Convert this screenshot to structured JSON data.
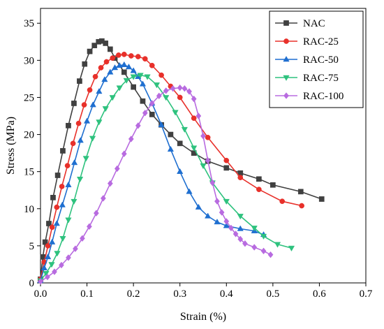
{
  "chart_data": {
    "type": "line",
    "title": "",
    "xlabel": "Strain (%)",
    "ylabel": "Stress (MPa)",
    "xlim": [
      0.0,
      0.7
    ],
    "ylim": [
      0,
      37
    ],
    "xticks": [
      "0.0",
      "0.1",
      "0.2",
      "0.3",
      "0.4",
      "0.5",
      "0.6",
      "0.7"
    ],
    "yticks": [
      "0",
      "5",
      "10",
      "15",
      "20",
      "25",
      "30",
      "35"
    ],
    "grid": false,
    "legend_position": "top-right",
    "series": [
      {
        "name": "NAC",
        "color": "#404040",
        "marker": "square",
        "x": [
          0.0,
          0.005,
          0.01,
          0.018,
          0.027,
          0.037,
          0.048,
          0.06,
          0.072,
          0.084,
          0.095,
          0.106,
          0.116,
          0.125,
          0.132,
          0.14,
          0.15,
          0.16,
          0.18,
          0.2,
          0.22,
          0.24,
          0.26,
          0.28,
          0.3,
          0.33,
          0.36,
          0.4,
          0.43,
          0.47,
          0.5,
          0.56,
          0.605
        ],
        "y": [
          0.5,
          3.5,
          5.5,
          8.0,
          11.5,
          14.5,
          17.8,
          21.2,
          24.2,
          27.2,
          29.5,
          31.2,
          32.0,
          32.5,
          32.6,
          32.3,
          31.5,
          30.3,
          28.4,
          26.4,
          24.5,
          22.7,
          21.3,
          20.0,
          18.8,
          17.5,
          16.4,
          15.5,
          14.8,
          14.0,
          13.2,
          12.3,
          11.3
        ]
      },
      {
        "name": "RAC-25",
        "color": "#e8302a",
        "marker": "circle",
        "x": [
          0.0,
          0.008,
          0.016,
          0.025,
          0.035,
          0.046,
          0.058,
          0.07,
          0.082,
          0.094,
          0.106,
          0.118,
          0.13,
          0.142,
          0.155,
          0.168,
          0.18,
          0.195,
          0.21,
          0.225,
          0.24,
          0.26,
          0.28,
          0.3,
          0.33,
          0.36,
          0.4,
          0.43,
          0.47,
          0.52,
          0.562
        ],
        "y": [
          0.5,
          2.8,
          5.0,
          7.5,
          10.2,
          13.0,
          15.8,
          18.8,
          21.5,
          24.0,
          26.0,
          27.8,
          29.0,
          29.8,
          30.3,
          30.7,
          30.8,
          30.6,
          30.5,
          30.2,
          29.3,
          28.0,
          26.5,
          25.0,
          22.2,
          19.6,
          16.5,
          14.2,
          12.6,
          11.0,
          10.4
        ]
      },
      {
        "name": "RAC-50",
        "color": "#1f6fd0",
        "marker": "triangle-up",
        "x": [
          0.0,
          0.008,
          0.016,
          0.025,
          0.035,
          0.047,
          0.06,
          0.073,
          0.086,
          0.1,
          0.113,
          0.126,
          0.138,
          0.15,
          0.16,
          0.17,
          0.18,
          0.19,
          0.2,
          0.21,
          0.22,
          0.24,
          0.26,
          0.28,
          0.3,
          0.32,
          0.34,
          0.36,
          0.38,
          0.4,
          0.43,
          0.46,
          0.48
        ],
        "y": [
          0.3,
          2.0,
          3.5,
          5.5,
          8.0,
          10.5,
          13.2,
          16.2,
          19.2,
          21.8,
          24.0,
          25.8,
          27.4,
          28.4,
          29.0,
          29.3,
          29.4,
          29.1,
          28.6,
          27.8,
          26.8,
          24.2,
          21.3,
          18.0,
          15.0,
          12.3,
          10.2,
          9.0,
          8.2,
          7.7,
          7.3,
          7.0,
          6.5
        ]
      },
      {
        "name": "RAC-75",
        "color": "#2ec27e",
        "marker": "triangle-down",
        "x": [
          0.0,
          0.012,
          0.024,
          0.036,
          0.048,
          0.06,
          0.072,
          0.085,
          0.098,
          0.112,
          0.126,
          0.14,
          0.155,
          0.17,
          0.185,
          0.2,
          0.215,
          0.23,
          0.25,
          0.27,
          0.29,
          0.31,
          0.33,
          0.35,
          0.37,
          0.4,
          0.43,
          0.46,
          0.48,
          0.51,
          0.54
        ],
        "y": [
          0.3,
          1.3,
          2.5,
          4.0,
          6.0,
          8.5,
          11.0,
          14.0,
          16.8,
          19.5,
          21.7,
          23.5,
          25.0,
          26.3,
          27.3,
          27.8,
          28.0,
          27.8,
          26.7,
          25.0,
          23.0,
          20.7,
          18.2,
          15.8,
          13.5,
          11.0,
          9.0,
          7.4,
          6.3,
          5.2,
          4.7
        ]
      },
      {
        "name": "RAC-100",
        "color": "#b86be0",
        "marker": "diamond",
        "x": [
          0.0,
          0.015,
          0.03,
          0.045,
          0.06,
          0.075,
          0.09,
          0.105,
          0.12,
          0.135,
          0.15,
          0.165,
          0.18,
          0.195,
          0.21,
          0.225,
          0.24,
          0.255,
          0.27,
          0.285,
          0.3,
          0.31,
          0.32,
          0.33,
          0.34,
          0.35,
          0.36,
          0.37,
          0.38,
          0.39,
          0.4,
          0.41,
          0.42,
          0.43,
          0.44,
          0.46,
          0.48,
          0.495
        ],
        "y": [
          0.2,
          0.8,
          1.5,
          2.4,
          3.4,
          4.6,
          6.0,
          7.6,
          9.4,
          11.4,
          13.4,
          15.4,
          17.4,
          19.4,
          21.2,
          22.9,
          24.2,
          25.2,
          25.9,
          26.2,
          26.3,
          26.2,
          25.8,
          24.8,
          22.5,
          19.8,
          16.5,
          13.5,
          11.0,
          9.5,
          8.3,
          7.4,
          6.6,
          5.9,
          5.3,
          4.8,
          4.3,
          3.8
        ]
      }
    ]
  }
}
